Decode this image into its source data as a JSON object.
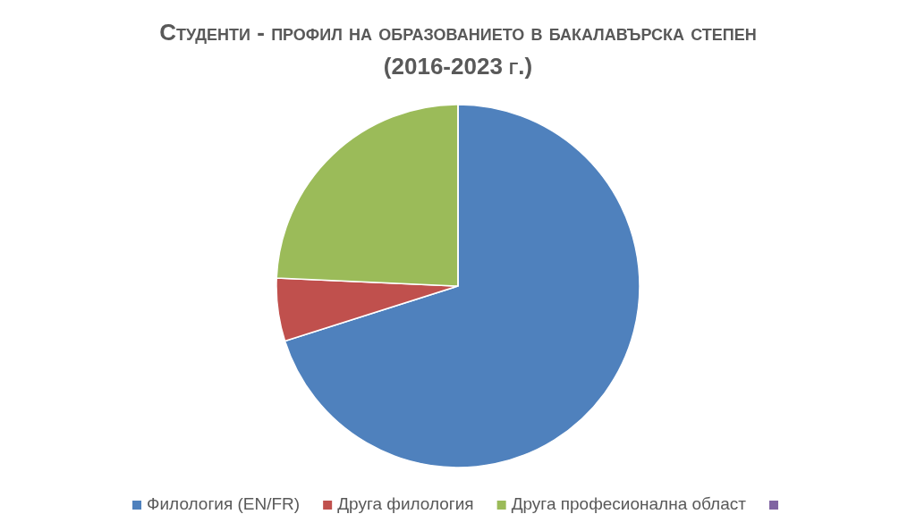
{
  "chart_data": {
    "type": "pie",
    "title": "Студенти - профил на образованието в бакалавърска степен (2016-2023 г.)",
    "categories": [
      "Филология (EN/FR)",
      "Друга филология",
      "Друга професионална област",
      null
    ],
    "values": [
      70.1,
      5.6,
      24.3,
      0
    ],
    "colors": [
      "#4f81bd",
      "#c0504d",
      "#9bbb59",
      "#8064a2"
    ],
    "legend": "bottom"
  }
}
